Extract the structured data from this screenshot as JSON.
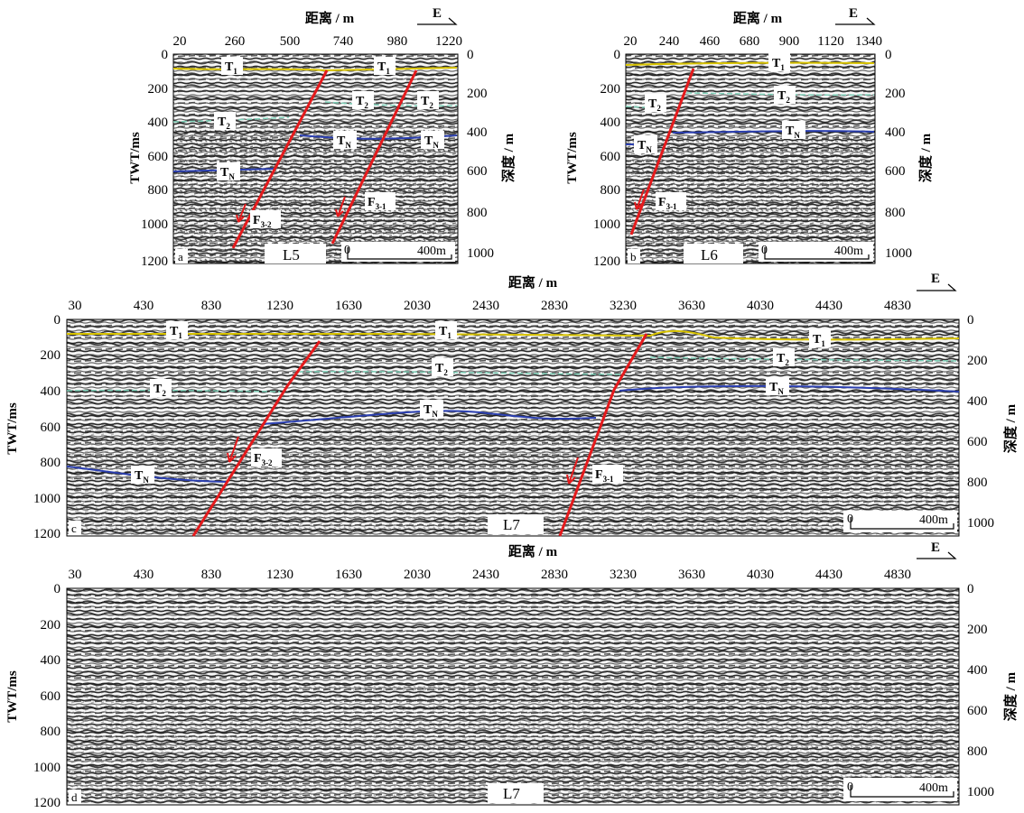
{
  "figure": {
    "x_axis_title": "距离 / m",
    "y_left_title": "TWT/ms",
    "y_right_title": "深度 / m",
    "east_label": "E",
    "scale_label": "400m",
    "scale_zero": "0"
  },
  "panels": [
    {
      "id": "a",
      "panel_letter": "a",
      "line_name": "L5",
      "x_ticks": [
        "20",
        "260",
        "500",
        "740",
        "980",
        "1220"
      ],
      "twt_ticks": [
        "0",
        "200",
        "400",
        "600",
        "800",
        "1000",
        "1200"
      ],
      "depth_ticks": [
        "0",
        "200",
        "400",
        "600",
        "800",
        "1000"
      ],
      "horizon_labels": [
        {
          "main": "T",
          "sub": "1"
        },
        {
          "main": "T",
          "sub": "1"
        },
        {
          "main": "T",
          "sub": "2"
        },
        {
          "main": "T",
          "sub": "2"
        },
        {
          "main": "T",
          "sub": "2"
        },
        {
          "main": "T",
          "sub": "N"
        },
        {
          "main": "T",
          "sub": "N"
        },
        {
          "main": "T",
          "sub": "N"
        }
      ],
      "fault_labels": [
        {
          "main": "F",
          "sub": "3-2"
        },
        {
          "main": "F",
          "sub": "3-1"
        }
      ]
    },
    {
      "id": "b",
      "panel_letter": "b",
      "line_name": "L6",
      "x_ticks": [
        "20",
        "240",
        "460",
        "680",
        "900",
        "1120",
        "1340"
      ],
      "twt_ticks": [
        "0",
        "200",
        "400",
        "600",
        "800",
        "1000",
        "1200"
      ],
      "depth_ticks": [
        "0",
        "200",
        "400",
        "600",
        "800",
        "1000"
      ],
      "horizon_labels": [
        {
          "main": "T",
          "sub": "1"
        },
        {
          "main": "T",
          "sub": "2"
        },
        {
          "main": "T",
          "sub": "2"
        },
        {
          "main": "T",
          "sub": "N"
        },
        {
          "main": "T",
          "sub": "N"
        }
      ],
      "fault_labels": [
        {
          "main": "F",
          "sub": "3-1"
        }
      ]
    },
    {
      "id": "c",
      "panel_letter": "c",
      "line_name": "L7",
      "x_ticks": [
        "30",
        "430",
        "830",
        "1230",
        "1630",
        "2030",
        "2430",
        "2830",
        "3230",
        "3630",
        "4030",
        "4430",
        "4830"
      ],
      "twt_ticks": [
        "0",
        "200",
        "400",
        "600",
        "800",
        "1000",
        "1200"
      ],
      "depth_ticks": [
        "0",
        "200",
        "400",
        "600",
        "800",
        "1000"
      ],
      "horizon_labels": [
        {
          "main": "T",
          "sub": "1"
        },
        {
          "main": "T",
          "sub": "1"
        },
        {
          "main": "T",
          "sub": "1"
        },
        {
          "main": "T",
          "sub": "2"
        },
        {
          "main": "T",
          "sub": "2"
        },
        {
          "main": "T",
          "sub": "2"
        },
        {
          "main": "T",
          "sub": "N"
        },
        {
          "main": "T",
          "sub": "N"
        },
        {
          "main": "T",
          "sub": "N"
        }
      ],
      "fault_labels": [
        {
          "main": "F",
          "sub": "3-2"
        },
        {
          "main": "F",
          "sub": "3-1"
        }
      ]
    },
    {
      "id": "d",
      "panel_letter": "d",
      "line_name": "L7",
      "x_ticks": [
        "30",
        "430",
        "830",
        "1230",
        "1630",
        "2030",
        "2430",
        "2830",
        "3230",
        "3630",
        "4030",
        "4430",
        "4830"
      ],
      "twt_ticks": [
        "0",
        "200",
        "400",
        "600",
        "800",
        "1000",
        "1200"
      ],
      "depth_ticks": [
        "0",
        "200",
        "400",
        "600",
        "800",
        "1000"
      ],
      "horizon_labels": [],
      "fault_labels": []
    }
  ],
  "colors": {
    "T1": "#d9c400",
    "T2": "#7fd1b9",
    "TN": "#2b3fb0",
    "fault": "#e41a1c",
    "seismic_light": "#f5f5f5",
    "seismic_dark": "#202020"
  }
}
